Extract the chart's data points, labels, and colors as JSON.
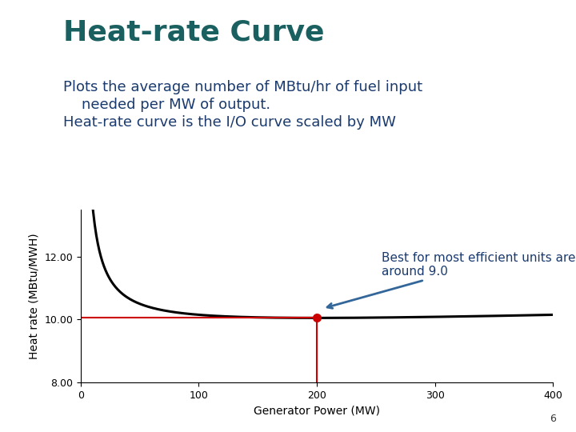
{
  "title": "Heat-rate Curve",
  "subtitle1": "Plots the average number of MBtu/hr of fuel input",
  "subtitle2": "    needed per MW of output.",
  "subtitle3": "Heat-rate curve is the I/O curve scaled by MW",
  "xlabel": "Generator Power (MW)",
  "ylabel": "Heat rate (MBtu/MWH)",
  "xlim": [
    0,
    400
  ],
  "ylim": [
    8.0,
    13.5
  ],
  "yticks": [
    8.0,
    10.0,
    12.0
  ],
  "xticks": [
    0,
    100,
    200,
    300,
    400
  ],
  "curve_color": "#000000",
  "redline_color": "#cc0000",
  "dot_color": "#cc0000",
  "annotation_text": "Best for most efficient units are\naround 9.0",
  "title_color": "#1a6060",
  "subtitle_color": "#1a3a6e",
  "header_bar_color": "#1a3a5c",
  "bg_left_color": "#90c090",
  "background_color": "#ffffff",
  "title_fontsize": 26,
  "subtitle_fontsize": 13,
  "axis_label_fontsize": 10,
  "tick_fontsize": 9,
  "annotation_fontsize": 11,
  "page_number": "6",
  "a_coeff": 0.001,
  "b_coeff": 9.65,
  "c_coeff": 40.0
}
